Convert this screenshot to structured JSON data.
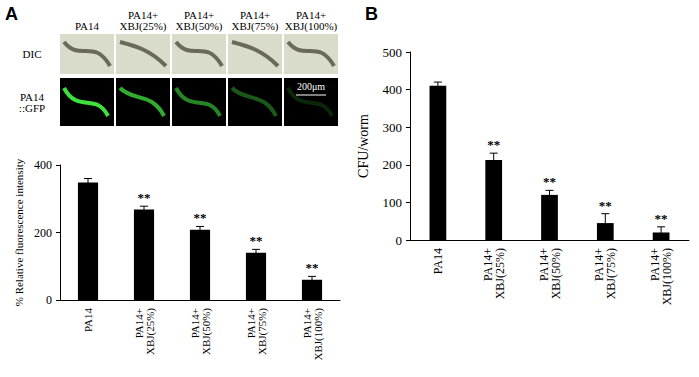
{
  "image_panel": {
    "columns": [
      "PA14",
      "PA14+\nXBJ(25%)",
      "PA14+\nXBJ(50%)",
      "PA14+\nXBJ(75%)",
      "PA14+\nXBJ(100%)"
    ],
    "rows": [
      "DIC",
      "PA14\n::GFP"
    ],
    "scale_bar": "200μm"
  },
  "chart_data": [
    {
      "type": "bar",
      "panel_label": "A",
      "categories": [
        "PA14",
        "PA14+\nXBJ(25%)",
        "PA14+\nXBJ(50%)",
        "PA14+\nXBJ(75%)",
        "PA14+\nXBJ(100%)"
      ],
      "values": [
        348,
        268,
        208,
        140,
        60
      ],
      "errors": [
        12,
        10,
        10,
        10,
        10
      ],
      "significance": [
        null,
        "**",
        "**",
        "**",
        "**"
      ],
      "color": "#000000",
      "ylabel": "% Relative fluorescence intensity",
      "ylim": [
        0,
        400
      ],
      "yticks": [
        0,
        200,
        400
      ],
      "grid": false
    },
    {
      "type": "bar",
      "panel_label": "B",
      "categories": [
        "PA14",
        "PA14+\nXBJ(25%)",
        "PA14+\nXBJ(50%)",
        "PA14+\nXBJ(75%)",
        "PA14+\nXBJ(100%)"
      ],
      "values": [
        410,
        213,
        120,
        45,
        20
      ],
      "errors": [
        10,
        18,
        12,
        25,
        15
      ],
      "significance": [
        null,
        "**",
        "**",
        "**",
        "**"
      ],
      "color": "#000000",
      "ylabel": "CFU/worm",
      "ylim": [
        0,
        500
      ],
      "yticks": [
        0,
        100,
        200,
        300,
        400,
        500
      ],
      "grid": false
    }
  ]
}
